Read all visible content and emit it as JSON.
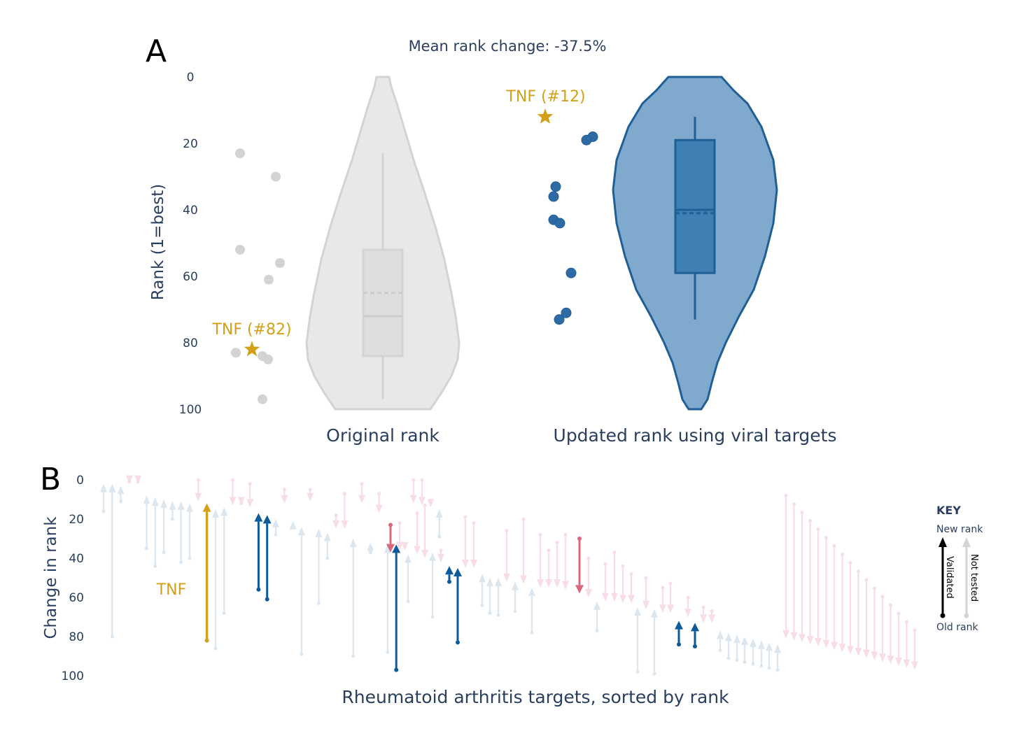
{
  "title": "Mean rank change: -37.5%",
  "colors": {
    "text": "#2a3f5f",
    "original": "#d3d3d3",
    "updated": "#1f5f96",
    "updated_fill": "#5b93c2",
    "tnf": "#d4a017",
    "validated_up": "#0b5a9c",
    "validated_down": "#d9687e",
    "faded_up": "#dbe6ef",
    "faded_down": "#f8dde4"
  },
  "chart_data": [
    {
      "panel": "A",
      "type": "violin",
      "ylabel": "Rank (1=best)",
      "ylim": [
        0,
        100
      ],
      "y_reversed": true,
      "yticks": [
        "0",
        "20",
        "40",
        "60",
        "80",
        "100"
      ],
      "series": [
        {
          "name": "Original rank",
          "points": [
            23,
            30,
            52,
            56,
            61,
            82,
            83,
            84,
            85,
            97
          ],
          "box": {
            "q1": 52,
            "median": 72,
            "mean": 65,
            "q3": 84,
            "whisker_low": 23,
            "whisker_high": 97
          },
          "annotation": {
            "label": "TNF (#82)",
            "value": 82
          }
        },
        {
          "name": "Updated rank using viral targets",
          "points": [
            12,
            18,
            19,
            33,
            36,
            43,
            44,
            59,
            71,
            73
          ],
          "box": {
            "q1": 19,
            "median": 40,
            "mean": 41,
            "q3": 59,
            "whisker_low": 12,
            "whisker_high": 73
          },
          "annotation": {
            "label": "TNF (#12)",
            "value": 12
          }
        }
      ]
    },
    {
      "panel": "B",
      "type": "arrow",
      "xlabel": "Rheumatoid arthritis targets, sorted by rank",
      "ylabel": "Change in rank",
      "ylim": [
        0,
        100
      ],
      "y_reversed": true,
      "yticks": [
        "0",
        "20",
        "40",
        "60",
        "80",
        "100"
      ],
      "tnf_label": "TNF",
      "arrows": [
        {
          "from": 16,
          "to": 2,
          "status": "nt"
        },
        {
          "from": 80,
          "to": 2,
          "status": "nt"
        },
        {
          "from": 11,
          "to": 3,
          "status": "nt"
        },
        {
          "from": 1,
          "to": 2,
          "status": "nt"
        },
        {
          "from": 1,
          "to": 2,
          "status": "nt"
        },
        {
          "from": 35,
          "to": 8,
          "status": "nt"
        },
        {
          "from": 44,
          "to": 9,
          "status": "nt"
        },
        {
          "from": 37,
          "to": 10,
          "status": "nt"
        },
        {
          "from": 20,
          "to": 11,
          "status": "nt"
        },
        {
          "from": 42,
          "to": 11,
          "status": "nt"
        },
        {
          "from": 40,
          "to": 12,
          "status": "nt"
        },
        {
          "from": 0,
          "to": 11,
          "status": "nt"
        },
        {
          "from": 82,
          "to": 12,
          "status": "tnf"
        },
        {
          "from": 86,
          "to": 15,
          "status": "nt"
        },
        {
          "from": 68,
          "to": 14,
          "status": "nt"
        },
        {
          "from": 0,
          "to": 13,
          "status": "nt"
        },
        {
          "from": 12,
          "to": 13,
          "status": "nt"
        },
        {
          "from": 2,
          "to": 14,
          "status": "nt"
        },
        {
          "from": 56,
          "to": 17,
          "status": "v"
        },
        {
          "from": 61,
          "to": 18,
          "status": "v"
        },
        {
          "from": 28,
          "to": 20,
          "status": "nt"
        },
        {
          "from": 5,
          "to": 12,
          "status": "nt"
        },
        {
          "from": 24,
          "to": 21,
          "status": "nt"
        },
        {
          "from": 89,
          "to": 24,
          "status": "nt"
        },
        {
          "from": 5,
          "to": 11,
          "status": "nt"
        },
        {
          "from": 63,
          "to": 25,
          "status": "nt"
        },
        {
          "from": 40,
          "to": 27,
          "status": "nt"
        },
        {
          "from": 18,
          "to": 25,
          "status": "nt"
        },
        {
          "from": 7,
          "to": 25,
          "status": "nt"
        },
        {
          "from": 90,
          "to": 30,
          "status": "nt"
        },
        {
          "from": 2,
          "to": 12,
          "status": "nt"
        },
        {
          "from": 37,
          "to": 32,
          "status": "nt"
        },
        {
          "from": 7,
          "to": 17,
          "status": "nt"
        },
        {
          "from": 88,
          "to": 33,
          "status": "nt"
        },
        {
          "from": 97,
          "to": 33,
          "status": "v"
        },
        {
          "from": 34,
          "to": 36,
          "status": "nt"
        },
        {
          "from": 0,
          "to": 12,
          "status": "nt"
        },
        {
          "from": 0,
          "to": 13,
          "status": "nt"
        },
        {
          "from": 12,
          "to": 14,
          "status": "nt"
        },
        {
          "from": 29,
          "to": 15,
          "status": "nt"
        }
      ]
    }
  ],
  "key": {
    "title": "KEY",
    "new_rank": "New rank",
    "old_rank": "Old rank",
    "validated": "Validated",
    "not_tested": "Not tested"
  }
}
